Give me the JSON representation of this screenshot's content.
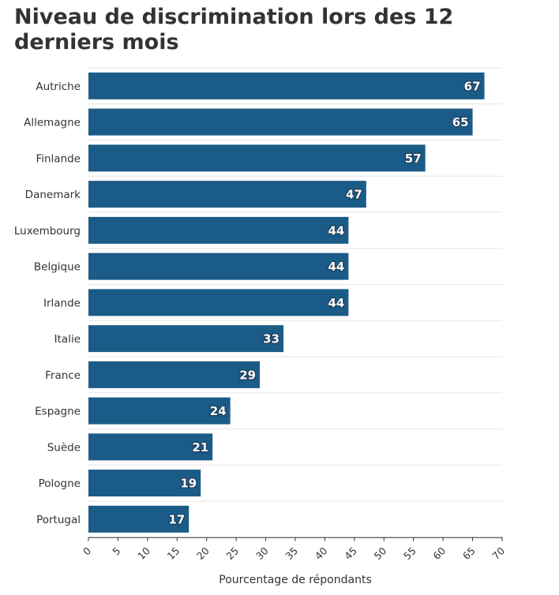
{
  "colors": {
    "bar": "#1b5b87",
    "grid": "#e6e6e6",
    "text": "#333333"
  },
  "chart_data": {
    "type": "bar",
    "orientation": "horizontal",
    "title": "Niveau de discrimination lors des 12 derniers mois",
    "xlabel": "Pourcentage de répondants",
    "ylabel": "",
    "categories": [
      "Autriche",
      "Allemagne",
      "Finlande",
      "Danemark",
      "Luxembourg",
      "Belgique",
      "Irlande",
      "Italie",
      "France",
      "Espagne",
      "Suède",
      "Pologne",
      "Portugal"
    ],
    "values": [
      67,
      65,
      57,
      47,
      44,
      44,
      44,
      33,
      29,
      24,
      21,
      19,
      17
    ],
    "xlim": [
      0,
      70
    ],
    "xticks": [
      0,
      5,
      10,
      15,
      20,
      25,
      30,
      35,
      40,
      45,
      50,
      55,
      60,
      65,
      70
    ],
    "grid": true,
    "data_labels": true
  }
}
